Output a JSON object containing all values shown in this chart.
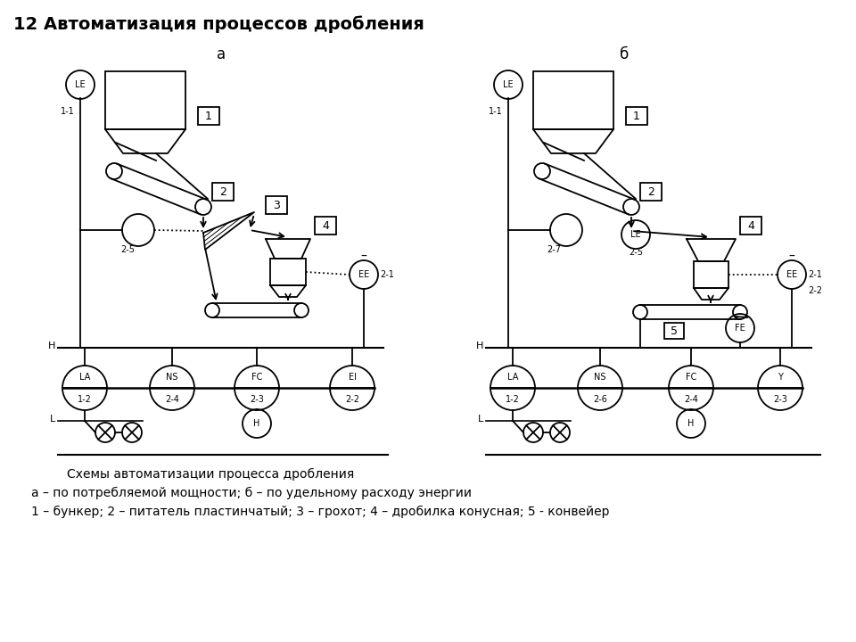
{
  "title": "12 Автоматизация процессов дробления",
  "label_a": "а",
  "label_b": "б",
  "caption1": "Схемы автоматизации процесса дробления",
  "caption2": "а – по потребляемой мощности; б – по удельному расходу энергии",
  "caption3": "1 – бункер; 2 – питатель пластинчатый; 3 – грохот; 4 – дробилка конусная; 5 - конвейер",
  "bg_color": "#ffffff",
  "line_color": "#000000"
}
